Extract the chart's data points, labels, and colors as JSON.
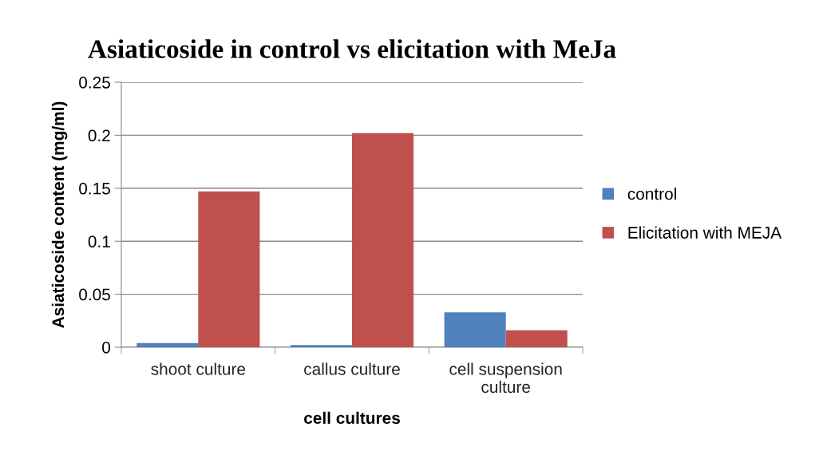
{
  "chart_data": {
    "type": "bar",
    "title": "Asiaticoside in control vs elicitation with MeJa",
    "xlabel": "cell cultures",
    "ylabel": "Asiaticoside content (mg/ml)",
    "categories": [
      "shoot culture",
      "callus culture",
      "cell suspension\nculture"
    ],
    "series": [
      {
        "name": "control",
        "color": "#4f81bd",
        "values": [
          0.004,
          0.002,
          0.033
        ]
      },
      {
        "name": "Elicitation with MEJA",
        "color": "#c0504d",
        "values": [
          0.147,
          0.202,
          0.016
        ]
      }
    ],
    "ylim": [
      0,
      0.25
    ],
    "yticks": [
      {
        "value": 0,
        "label": "0"
      },
      0.05,
      0.1,
      0.15,
      0.2,
      0.25
    ],
    "grid": "y",
    "legend": "right"
  }
}
